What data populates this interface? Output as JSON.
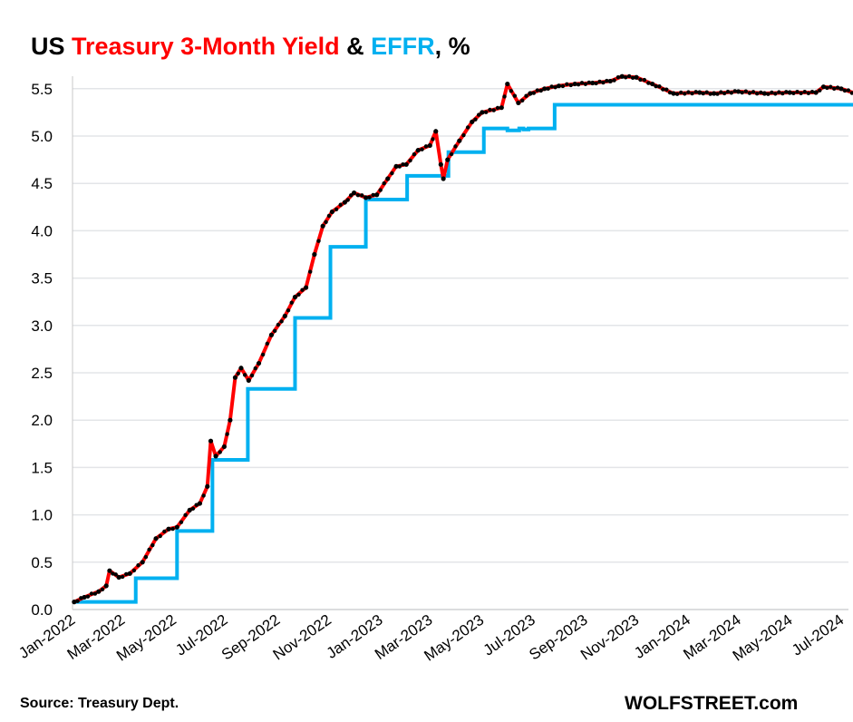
{
  "title": {
    "prefix": "US ",
    "series1": "Treasury 3-Month Yield",
    "amp": " & ",
    "series2": "EFFR",
    "suffix": ", %"
  },
  "source": "Source: Treasury Dept.",
  "brand": "WOLFSTREET.com",
  "colors": {
    "yield": "#ff0000",
    "effr": "#00b0f0",
    "dots": "#000000",
    "grid": "#e3e5e8"
  },
  "chart_data": {
    "type": "line",
    "title": "US Treasury 3-Month Yield & EFFR, %",
    "ylim": [
      0,
      5.7
    ],
    "yticks": [
      "0.0",
      "0.5",
      "1.0",
      "1.5",
      "2.0",
      "2.5",
      "3.0",
      "3.5",
      "4.0",
      "4.5",
      "5.0",
      "5.5"
    ],
    "xlim": [
      "2022-01-01",
      "2024-07-25"
    ],
    "xticks": [
      [
        "2022-01-01",
        "Jan-2022"
      ],
      [
        "2022-03-01",
        "Mar-2022"
      ],
      [
        "2022-05-01",
        "May-2022"
      ],
      [
        "2022-07-01",
        "Jul-2022"
      ],
      [
        "2022-09-01",
        "Sep-2022"
      ],
      [
        "2022-11-01",
        "Nov-2022"
      ],
      [
        "2023-01-01",
        "Jan-2023"
      ],
      [
        "2023-03-01",
        "Mar-2023"
      ],
      [
        "2023-05-01",
        "May-2023"
      ],
      [
        "2023-07-01",
        "Jul-2023"
      ],
      [
        "2023-09-01",
        "Sep-2023"
      ],
      [
        "2023-11-01",
        "Nov-2023"
      ],
      [
        "2024-01-01",
        "Jan-2024"
      ],
      [
        "2024-03-01",
        "Mar-2024"
      ],
      [
        "2024-05-01",
        "May-2024"
      ],
      [
        "2024-07-01",
        "Jul-2024"
      ]
    ],
    "grid": true,
    "legend": "none (in title)",
    "series": [
      {
        "name": "Treasury 3-Month Yield",
        "style": "red line with black dots",
        "points": [
          [
            "2022-01-03",
            0.08
          ],
          [
            "2022-01-15",
            0.13
          ],
          [
            "2022-02-01",
            0.19
          ],
          [
            "2022-02-10",
            0.25
          ],
          [
            "2022-02-14",
            0.41
          ],
          [
            "2022-02-25",
            0.34
          ],
          [
            "2022-03-10",
            0.38
          ],
          [
            "2022-03-25",
            0.5
          ],
          [
            "2022-04-10",
            0.75
          ],
          [
            "2022-04-25",
            0.85
          ],
          [
            "2022-05-05",
            0.87
          ],
          [
            "2022-05-20",
            1.05
          ],
          [
            "2022-06-01",
            1.12
          ],
          [
            "2022-06-10",
            1.3
          ],
          [
            "2022-06-14",
            1.78
          ],
          [
            "2022-06-20",
            1.62
          ],
          [
            "2022-06-30",
            1.72
          ],
          [
            "2022-07-07",
            2.0
          ],
          [
            "2022-07-13",
            2.45
          ],
          [
            "2022-07-20",
            2.55
          ],
          [
            "2022-07-29",
            2.42
          ],
          [
            "2022-08-10",
            2.6
          ],
          [
            "2022-08-25",
            2.9
          ],
          [
            "2022-09-10",
            3.1
          ],
          [
            "2022-09-22",
            3.3
          ],
          [
            "2022-10-05",
            3.4
          ],
          [
            "2022-10-15",
            3.75
          ],
          [
            "2022-10-25",
            4.05
          ],
          [
            "2022-11-05",
            4.2
          ],
          [
            "2022-11-20",
            4.3
          ],
          [
            "2022-12-01",
            4.4
          ],
          [
            "2022-12-15",
            4.35
          ],
          [
            "2022-12-28",
            4.38
          ],
          [
            "2023-01-10",
            4.55
          ],
          [
            "2023-01-20",
            4.68
          ],
          [
            "2023-02-01",
            4.7
          ],
          [
            "2023-02-15",
            4.85
          ],
          [
            "2023-03-01",
            4.9
          ],
          [
            "2023-03-08",
            5.05
          ],
          [
            "2023-03-14",
            4.7
          ],
          [
            "2023-03-17",
            4.55
          ],
          [
            "2023-03-22",
            4.75
          ],
          [
            "2023-04-05",
            4.95
          ],
          [
            "2023-04-20",
            5.15
          ],
          [
            "2023-05-02",
            5.25
          ],
          [
            "2023-05-25",
            5.3
          ],
          [
            "2023-06-01",
            5.55
          ],
          [
            "2023-06-14",
            5.35
          ],
          [
            "2023-06-28",
            5.45
          ],
          [
            "2023-07-15",
            5.5
          ],
          [
            "2023-08-01",
            5.53
          ],
          [
            "2023-08-20",
            5.55
          ],
          [
            "2023-09-10",
            5.56
          ],
          [
            "2023-10-01",
            5.58
          ],
          [
            "2023-10-15",
            5.63
          ],
          [
            "2023-11-01",
            5.62
          ],
          [
            "2023-11-20",
            5.55
          ],
          [
            "2023-12-15",
            5.45
          ],
          [
            "2024-01-15",
            5.46
          ],
          [
            "2024-02-01",
            5.45
          ],
          [
            "2024-03-01",
            5.47
          ],
          [
            "2024-04-01",
            5.45
          ],
          [
            "2024-05-01",
            5.46
          ],
          [
            "2024-06-01",
            5.46
          ],
          [
            "2024-06-10",
            5.52
          ],
          [
            "2024-07-01",
            5.5
          ],
          [
            "2024-07-18",
            5.45
          ]
        ]
      },
      {
        "name": "EFFR",
        "style": "blue step line",
        "points": [
          [
            "2022-01-03",
            0.08
          ],
          [
            "2022-03-17",
            0.33
          ],
          [
            "2022-05-05",
            0.83
          ],
          [
            "2022-06-16",
            1.58
          ],
          [
            "2022-07-28",
            2.33
          ],
          [
            "2022-09-22",
            3.08
          ],
          [
            "2022-11-03",
            3.83
          ],
          [
            "2022-12-15",
            4.33
          ],
          [
            "2023-02-02",
            4.58
          ],
          [
            "2023-03-23",
            4.83
          ],
          [
            "2023-05-04",
            5.08
          ],
          [
            "2023-06-01",
            5.06
          ],
          [
            "2023-06-15",
            5.08
          ],
          [
            "2023-06-20",
            5.07
          ],
          [
            "2023-06-26",
            5.08
          ],
          [
            "2023-07-27",
            5.33
          ],
          [
            "2024-07-18",
            5.33
          ]
        ]
      }
    ]
  }
}
